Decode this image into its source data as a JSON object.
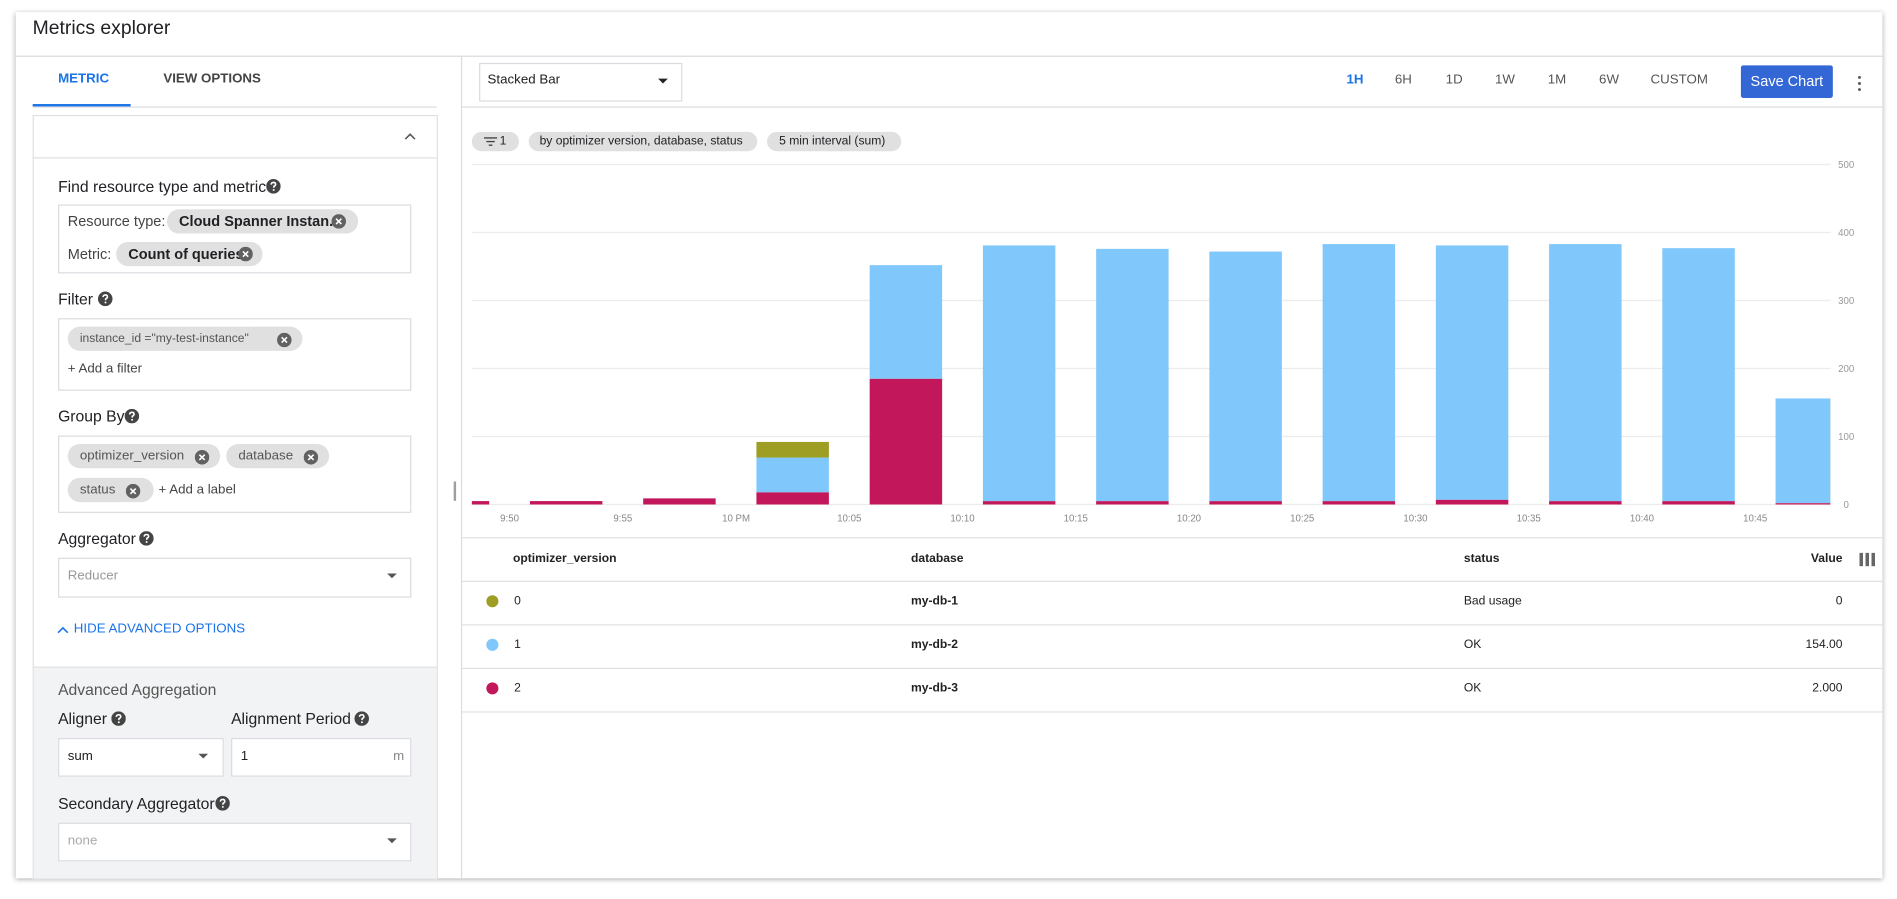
{
  "header": {
    "title": "Metrics explorer"
  },
  "sidebar": {
    "tabs": [
      "METRIC",
      "VIEW OPTIONS"
    ],
    "find_label": "Find resource type and metric",
    "resource_type_label": "Resource type:",
    "resource_type": "Cloud Spanner Instan...",
    "metric_label": "Metric:",
    "metric": "Count of queries",
    "filter_label": "Filter",
    "filter_chip": "instance_id =\"my-test-instance\"",
    "add_filter": "+ Add a filter",
    "group_by_label": "Group By",
    "group_by": [
      "optimizer_version",
      "database",
      "status"
    ],
    "add_label": "+ Add a label",
    "aggregator_label": "Aggregator",
    "aggregator": "Reducer",
    "hide_advanced": "HIDE ADVANCED OPTIONS",
    "advanced_title": "Advanced Aggregation",
    "aligner_label": "Aligner",
    "aligner": "sum",
    "alignment_period_label": "Alignment Period",
    "alignment_period": "1",
    "alignment_unit": "m",
    "secondary_label": "Secondary Aggregator",
    "secondary": "none"
  },
  "toolbar": {
    "chart_type": "Stacked Bar",
    "ranges": [
      "1H",
      "6H",
      "1D",
      "1W",
      "1M",
      "6W",
      "CUSTOM"
    ],
    "save": "Save Chart",
    "filter_count": "1",
    "group_chip": "by optimizer version, database, status",
    "interval_chip": "5 min interval (sum)"
  },
  "chart_data": {
    "type": "stacked_bar",
    "categories": [
      null,
      null,
      null,
      null,
      null,
      null,
      null,
      null,
      null,
      null,
      null,
      null,
      null
    ],
    "xtick_labels": [
      "9:50",
      "9:55",
      "10 PM",
      "10:05",
      "10:10",
      "10:15",
      "10:20",
      "10:25",
      "10:30",
      "10:35",
      "10:40",
      "10:45"
    ],
    "series": [
      {
        "color": "#c2185b",
        "values": [
          5,
          5,
          9,
          18,
          185,
          5,
          5,
          5,
          5,
          7,
          5,
          5,
          2
        ]
      },
      {
        "color": "#80c8fb",
        "values": [
          0,
          0,
          0,
          51,
          167,
          376,
          371,
          367,
          378,
          374,
          378,
          372,
          154
        ]
      },
      {
        "color": "#9e9d24",
        "values": [
          0,
          0,
          0,
          23,
          0,
          0,
          0,
          0,
          0,
          0,
          0,
          0,
          0
        ]
      }
    ],
    "ylim": [
      0,
      500
    ],
    "yticks": [
      0,
      100,
      200,
      300,
      400,
      500
    ],
    "y_axis_side": "right",
    "grid": true
  },
  "table": {
    "columns": [
      "optimizer_version",
      "database",
      "status",
      "Value"
    ],
    "row_colors": [
      "#9e9d24",
      "#80c8fb",
      "#c2185b"
    ],
    "rows": [
      [
        "0",
        "my-db-1",
        "Bad usage",
        "0"
      ],
      [
        "1",
        "my-db-2",
        "OK",
        "154.00"
      ],
      [
        "2",
        "my-db-3",
        "OK",
        "2.000"
      ]
    ]
  }
}
